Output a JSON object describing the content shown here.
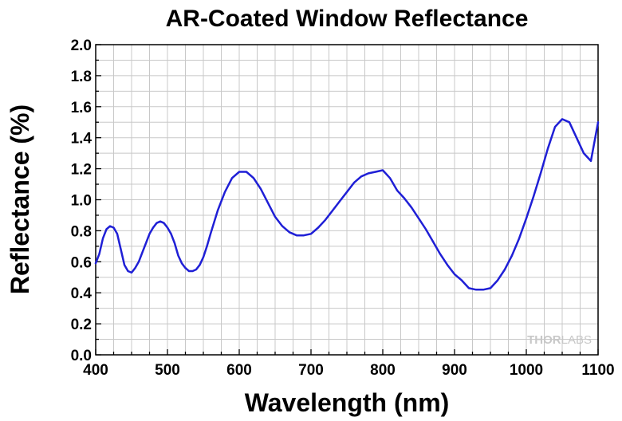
{
  "chart_data": {
    "type": "line",
    "title": "AR-Coated Window Reflectance",
    "xlabel": "Wavelength (nm)",
    "ylabel": "Reflectance (%)",
    "xlim": [
      400,
      1100
    ],
    "ylim": [
      0.0,
      2.0
    ],
    "x_ticks": [
      "400",
      "500",
      "600",
      "700",
      "800",
      "900",
      "1000",
      "1100"
    ],
    "y_ticks": [
      "0.0",
      "0.2",
      "0.4",
      "0.6",
      "0.8",
      "1.0",
      "1.2",
      "1.4",
      "1.6",
      "1.8",
      "2.0"
    ],
    "grid": true,
    "line_color": "#1f1fd6",
    "watermark": {
      "prefix": "THOR",
      "suffix": "LABS"
    },
    "series": [
      {
        "x": [
          400,
          405,
          410,
          415,
          420,
          425,
          430,
          435,
          440,
          445,
          450,
          455,
          460,
          465,
          470,
          475,
          480,
          485,
          490,
          495,
          500,
          505,
          510,
          515,
          520,
          525,
          530,
          535,
          540,
          545,
          550,
          555,
          560,
          570,
          580,
          590,
          600,
          610,
          620,
          630,
          640,
          650,
          660,
          670,
          680,
          690,
          700,
          710,
          720,
          730,
          740,
          750,
          760,
          770,
          780,
          790,
          800,
          810,
          820,
          830,
          840,
          850,
          860,
          870,
          880,
          890,
          900,
          910,
          920,
          930,
          940,
          950,
          960,
          970,
          980,
          990,
          1000,
          1010,
          1020,
          1030,
          1040,
          1050,
          1060,
          1070,
          1080,
          1090,
          1100
        ],
        "values": [
          0.59,
          0.65,
          0.75,
          0.81,
          0.83,
          0.82,
          0.78,
          0.68,
          0.58,
          0.54,
          0.53,
          0.56,
          0.6,
          0.66,
          0.72,
          0.78,
          0.82,
          0.85,
          0.86,
          0.85,
          0.82,
          0.78,
          0.72,
          0.64,
          0.59,
          0.56,
          0.54,
          0.54,
          0.55,
          0.58,
          0.63,
          0.7,
          0.78,
          0.93,
          1.05,
          1.14,
          1.18,
          1.18,
          1.14,
          1.07,
          0.98,
          0.89,
          0.83,
          0.79,
          0.77,
          0.77,
          0.78,
          0.82,
          0.87,
          0.93,
          0.99,
          1.05,
          1.11,
          1.15,
          1.17,
          1.18,
          1.19,
          1.14,
          1.06,
          1.01,
          0.95,
          0.88,
          0.81,
          0.73,
          0.65,
          0.58,
          0.52,
          0.48,
          0.43,
          0.42,
          0.42,
          0.43,
          0.48,
          0.55,
          0.64,
          0.75,
          0.88,
          1.02,
          1.17,
          1.33,
          1.47,
          1.52,
          1.5,
          1.4,
          1.3,
          1.25,
          1.5
        ]
      }
    ]
  }
}
